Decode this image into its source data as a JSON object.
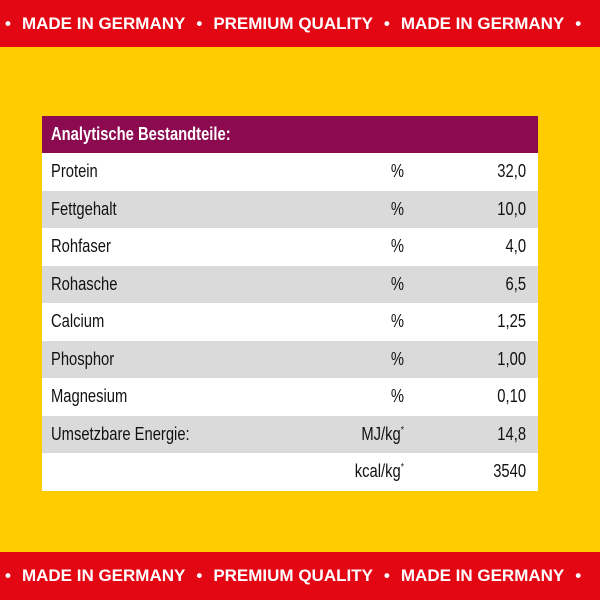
{
  "banner": {
    "items": [
      "MADE IN GERMANY",
      "PREMIUM QUALITY",
      "MADE IN GERMANY"
    ],
    "separator": "•"
  },
  "table": {
    "title": "Analytische Bestandteile:",
    "rows": [
      {
        "name": "Protein",
        "unit": "%",
        "value": "32,0"
      },
      {
        "name": "Fettgehalt",
        "unit": "%",
        "value": "10,0"
      },
      {
        "name": "Rohfaser",
        "unit": "%",
        "value": "4,0"
      },
      {
        "name": "Rohasche",
        "unit": "%",
        "value": "6,5"
      },
      {
        "name": "Calcium",
        "unit": "%",
        "value": "1,25"
      },
      {
        "name": "Phosphor",
        "unit": "%",
        "value": "1,00"
      },
      {
        "name": "Magnesium",
        "unit": "%",
        "value": "0,10"
      },
      {
        "name": "Umsetzbare Energie:",
        "unit": "MJ/kg",
        "sup": "*",
        "value": "14,8"
      },
      {
        "name": "",
        "unit": "kcal/kg",
        "sup": "*",
        "value": "3540"
      }
    ]
  },
  "colors": {
    "red": "#E30613",
    "yellow": "#FFCC00",
    "header": "#8B0A50"
  }
}
